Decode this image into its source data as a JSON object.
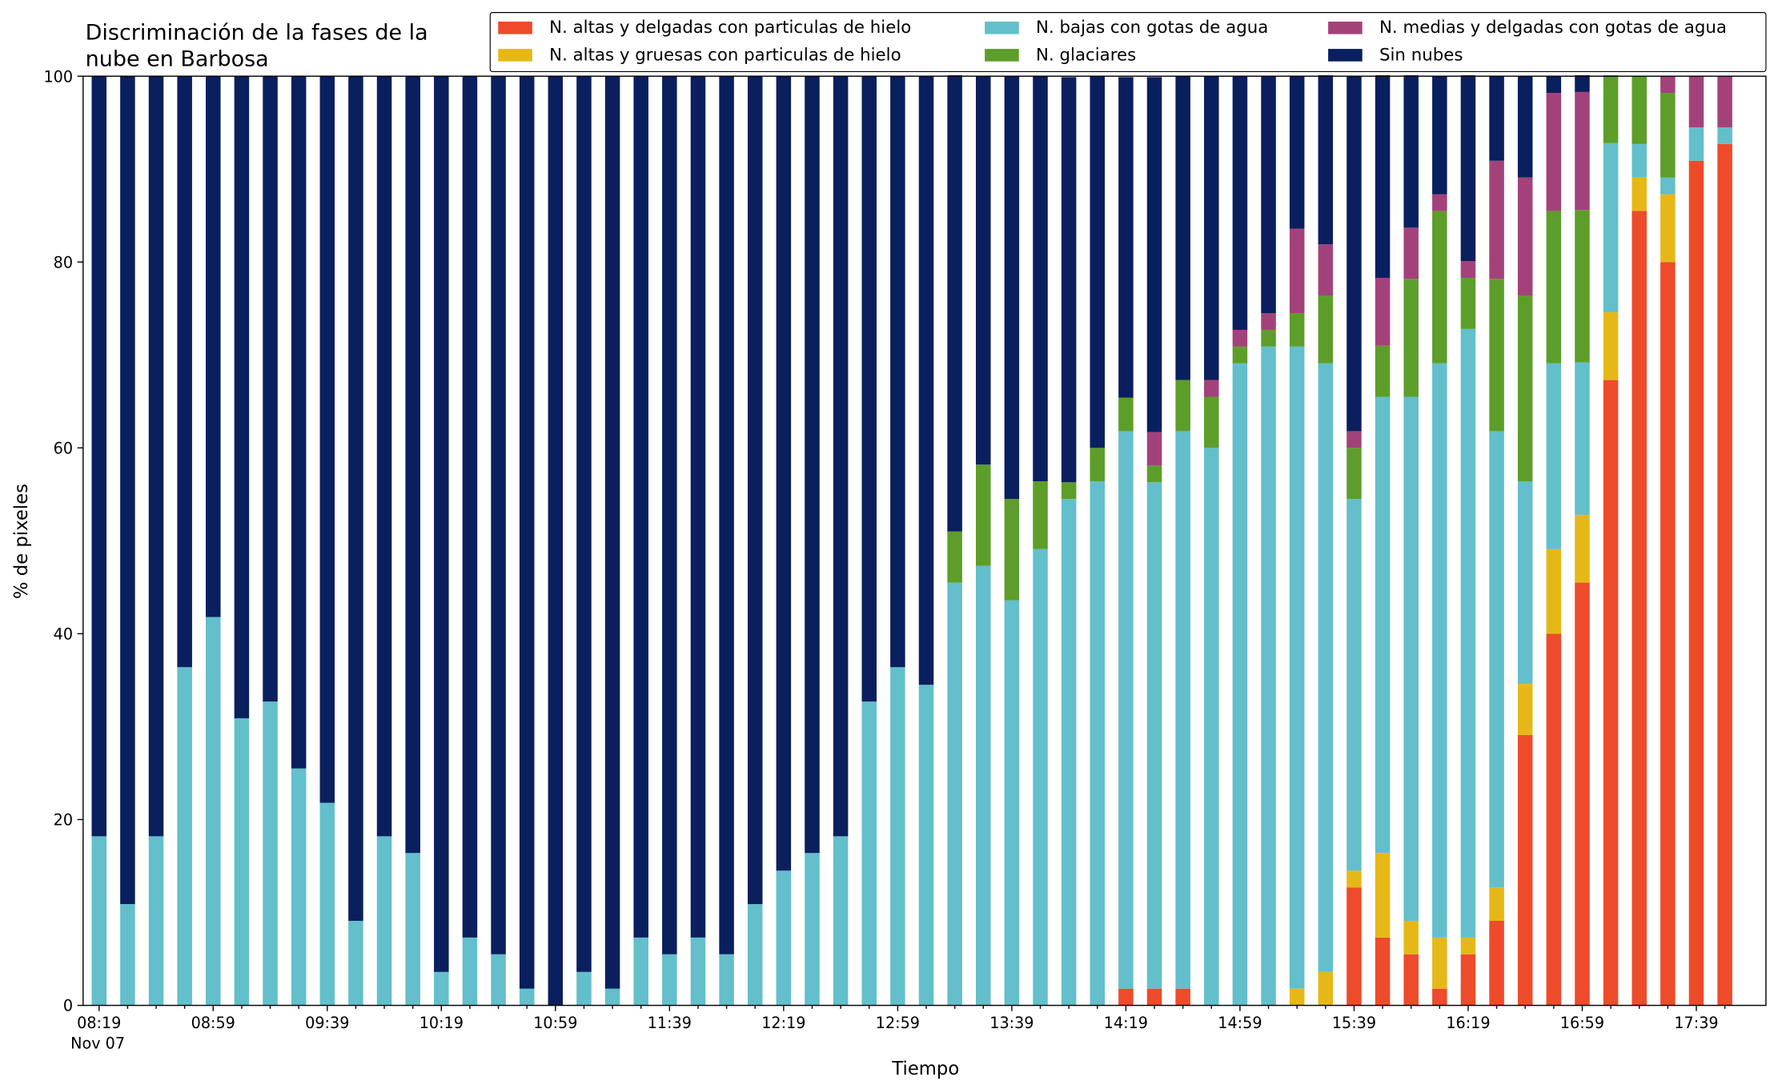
{
  "chart_data": {
    "type": "stacked_bar",
    "title": [
      "Discriminación de la fases de la",
      "nube en Barbosa"
    ],
    "xlabel": "Tiempo",
    "xlabel_date": "Nov 07",
    "ylabel": "% de pixeles",
    "ylim": [
      0,
      100
    ],
    "yticks": [
      0,
      20,
      40,
      60,
      80,
      100
    ],
    "legend": "top",
    "categories": [
      "08:19",
      null,
      null,
      null,
      "08:59",
      null,
      null,
      null,
      "09:39",
      null,
      null,
      null,
      "10:19",
      null,
      null,
      null,
      "10:59",
      null,
      null,
      null,
      "11:39",
      null,
      null,
      null,
      "12:19",
      null,
      null,
      null,
      "12:59",
      null,
      null,
      null,
      "13:39",
      null,
      null,
      null,
      "14:19",
      null,
      null,
      null,
      "14:59",
      null,
      null,
      null,
      "15:39",
      null,
      null,
      null,
      "16:19",
      null,
      null,
      null,
      "16:59",
      null,
      null,
      null,
      "17:39",
      null
    ],
    "series": [
      {
        "name": "N. altas y delgadas con particulas de hielo",
        "color": "#ee4b2b",
        "values": [
          0,
          0,
          0,
          0,
          0,
          0,
          0,
          0,
          0,
          0,
          0,
          0,
          0,
          0,
          0,
          0,
          0,
          0,
          0,
          0,
          0,
          0,
          0,
          0,
          0,
          0,
          0,
          0,
          0,
          0,
          0,
          0,
          0,
          0,
          0,
          0,
          1.8,
          1.8,
          1.8,
          0,
          0,
          0,
          0,
          0,
          12.7,
          7.3,
          5.5,
          1.8,
          5.5,
          9.1,
          29.1,
          40,
          45.5,
          67.3,
          85.5,
          80,
          90.9,
          92.7
        ]
      },
      {
        "name": "N. altas y gruesas con particulas de hielo",
        "color": "#e6b817",
        "values": [
          0,
          0,
          0,
          0,
          0,
          0,
          0,
          0,
          0,
          0,
          0,
          0,
          0,
          0,
          0,
          0,
          0,
          0,
          0,
          0,
          0,
          0,
          0,
          0,
          0,
          0,
          0,
          0,
          0,
          0,
          0,
          0,
          0,
          0,
          0,
          0,
          0,
          0,
          0,
          0,
          0,
          0,
          1.8,
          3.6,
          1.8,
          9.1,
          3.6,
          5.5,
          1.8,
          3.6,
          5.5,
          9.1,
          7.3,
          7.3,
          3.6,
          7.3,
          0,
          0
        ]
      },
      {
        "name": "N. bajas con gotas de agua",
        "color": "#63bfcb",
        "values": [
          18.2,
          10.9,
          18.2,
          36.4,
          41.8,
          30.9,
          32.7,
          25.5,
          21.8,
          9.1,
          18.2,
          16.4,
          3.6,
          7.3,
          5.5,
          1.8,
          0,
          3.6,
          1.8,
          7.3,
          5.5,
          7.3,
          5.5,
          10.9,
          14.5,
          16.4,
          18.2,
          32.7,
          36.4,
          34.5,
          45.5,
          47.3,
          43.6,
          49.1,
          54.5,
          56.4,
          60,
          54.5,
          60,
          60,
          69.1,
          70.9,
          69.1,
          65.5,
          40,
          49.1,
          56.4,
          61.8,
          65.5,
          49.1,
          21.8,
          20,
          16.4,
          18.2,
          3.6,
          1.8,
          3.6,
          1.8
        ]
      },
      {
        "name": "N. glaciares",
        "color": "#5d9e2a",
        "values": [
          0,
          0,
          0,
          0,
          0,
          0,
          0,
          0,
          0,
          0,
          0,
          0,
          0,
          0,
          0,
          0,
          0,
          0,
          0,
          0,
          0,
          0,
          0,
          0,
          0,
          0,
          0,
          0,
          0,
          0,
          5.5,
          10.9,
          10.9,
          7.3,
          1.8,
          3.6,
          3.6,
          1.8,
          5.5,
          5.5,
          1.8,
          1.8,
          3.6,
          7.3,
          5.5,
          5.5,
          12.7,
          16.4,
          5.5,
          16.4,
          20,
          16.4,
          16.4,
          7.3,
          7.3,
          9.1,
          0,
          0
        ]
      },
      {
        "name": "N. medias y delgadas con gotas de agua",
        "color": "#a3427a",
        "values": [
          0,
          0,
          0,
          0,
          0,
          0,
          0,
          0,
          0,
          0,
          0,
          0,
          0,
          0,
          0,
          0,
          0,
          0,
          0,
          0,
          0,
          0,
          0,
          0,
          0,
          0,
          0,
          0,
          0,
          0,
          0,
          0,
          0,
          0,
          0,
          0,
          0,
          3.6,
          0,
          1.8,
          1.8,
          1.8,
          9.1,
          5.5,
          1.8,
          7.3,
          5.5,
          1.8,
          1.8,
          12.7,
          12.7,
          12.7,
          12.7,
          0,
          0,
          1.8,
          5.5,
          5.5
        ]
      },
      {
        "name": "Sin nubes",
        "color": "#0a1f5e",
        "values": [
          81.8,
          89.1,
          81.8,
          63.6,
          58.2,
          69.1,
          67.3,
          74.5,
          78.2,
          90.9,
          81.8,
          83.6,
          96.4,
          92.7,
          94.5,
          98.2,
          100,
          96.4,
          98.2,
          92.7,
          94.5,
          92.7,
          94.5,
          89.1,
          85.5,
          83.6,
          81.8,
          67.3,
          63.6,
          65.5,
          49.1,
          41.8,
          45.5,
          43.6,
          43.6,
          40,
          34.5,
          38.2,
          32.7,
          32.7,
          27.3,
          25.5,
          16.4,
          18.2,
          38.2,
          21.8,
          16.4,
          12.7,
          20,
          9.1,
          10.9,
          1.8,
          1.8,
          0,
          0,
          0,
          0,
          0
        ]
      }
    ]
  }
}
